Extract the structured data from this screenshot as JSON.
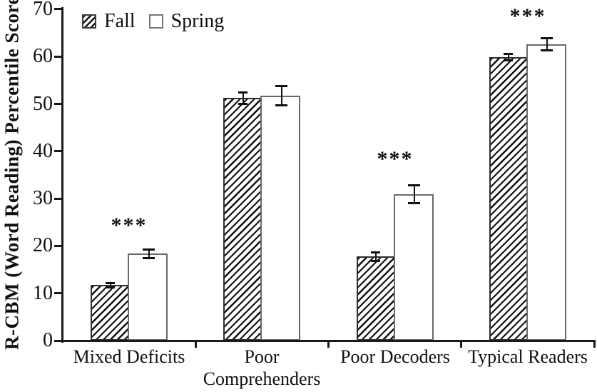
{
  "chart_data": {
    "type": "bar",
    "title": "",
    "xlabel": "",
    "ylabel": "R-CBM (Word Reading) Percentile Score",
    "ylim": [
      0,
      70
    ],
    "yticks": [
      0,
      10,
      20,
      30,
      40,
      50,
      60,
      70
    ],
    "grid": false,
    "categories": [
      "Mixed Deficits",
      "Poor Comprehenders",
      "Poor Decoders",
      "Typical Readers"
    ],
    "series": [
      {
        "name": "Fall",
        "style": "hatched",
        "values": [
          11.7,
          51.3,
          17.8,
          59.9
        ],
        "errors": [
          0.7,
          1.4,
          1.1,
          0.9
        ]
      },
      {
        "name": "Spring",
        "style": "open",
        "values": [
          18.4,
          51.7,
          30.9,
          62.6
        ],
        "errors": [
          1.1,
          2.3,
          2.1,
          1.5
        ]
      }
    ],
    "significance": [
      {
        "category": "Mixed Deficits",
        "label": "***",
        "y": 24.5
      },
      {
        "category": "Poor Decoders",
        "label": "***",
        "y": 38.5
      },
      {
        "category": "Typical Readers",
        "label": "***",
        "y": 68.6
      }
    ],
    "legend": {
      "position": "top-left",
      "items": [
        "Fall",
        "Spring"
      ]
    },
    "colors": {
      "background": "#ffffff",
      "axis": "#1a1a1a",
      "text": "#111111",
      "fall_border": "#2f2f2f",
      "spring_border": "#6a6a6a",
      "hatch": "#111111",
      "bar_fill": "#ffffff"
    }
  }
}
